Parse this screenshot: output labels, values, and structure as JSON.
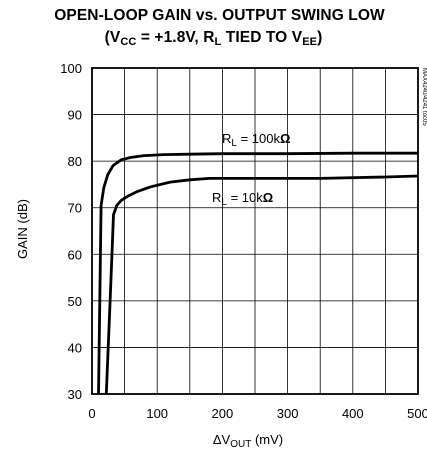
{
  "chart_data": {
    "type": "line",
    "title": {
      "line1": "OPEN-LOOP GAIN vs. OUTPUT SWING LOW",
      "line2": {
        "open": "(V",
        "cc_sub": "CC",
        "mid": " = +1.8V, R",
        "l_sub": "L",
        "tail": " TIED TO V",
        "ee_sub": "EE",
        "close": ")"
      }
    },
    "xlabel": {
      "prefix": "ΔV",
      "sub": "OUT",
      "suffix": " (mV)"
    },
    "ylabel": "GAIN (dB)",
    "xlim": [
      0,
      500
    ],
    "ylim": [
      30,
      100
    ],
    "xticks": [
      "0",
      "100",
      "200",
      "300",
      "400",
      "500"
    ],
    "yticks": [
      "30",
      "40",
      "50",
      "60",
      "70",
      "80",
      "90",
      "100"
    ],
    "grid": true,
    "watermark": "MAX4240/4241 toc05",
    "series": [
      {
        "name": {
          "prefix": "R",
          "sub": "L",
          "suffix": " = 100k",
          "unit": "Ω"
        },
        "x": [
          10,
          14,
          18,
          24,
          32,
          45,
          60,
          80,
          110,
          150,
          200,
          300,
          400,
          500
        ],
        "y": [
          30,
          70.5,
          74.2,
          77.0,
          79.0,
          80.3,
          80.8,
          81.2,
          81.4,
          81.5,
          81.6,
          81.6,
          81.7,
          81.7
        ]
      },
      {
        "name": {
          "prefix": "R",
          "sub": "L",
          "suffix": " = 10k",
          "unit": "Ω"
        },
        "x": [
          22,
          28,
          33,
          38,
          45,
          55,
          70,
          90,
          120,
          150,
          180,
          250,
          350,
          450,
          500
        ],
        "y": [
          30,
          51,
          68.5,
          70.5,
          71.6,
          72.5,
          73.5,
          74.5,
          75.5,
          76.0,
          76.3,
          76.3,
          76.3,
          76.6,
          76.8
        ]
      }
    ]
  }
}
